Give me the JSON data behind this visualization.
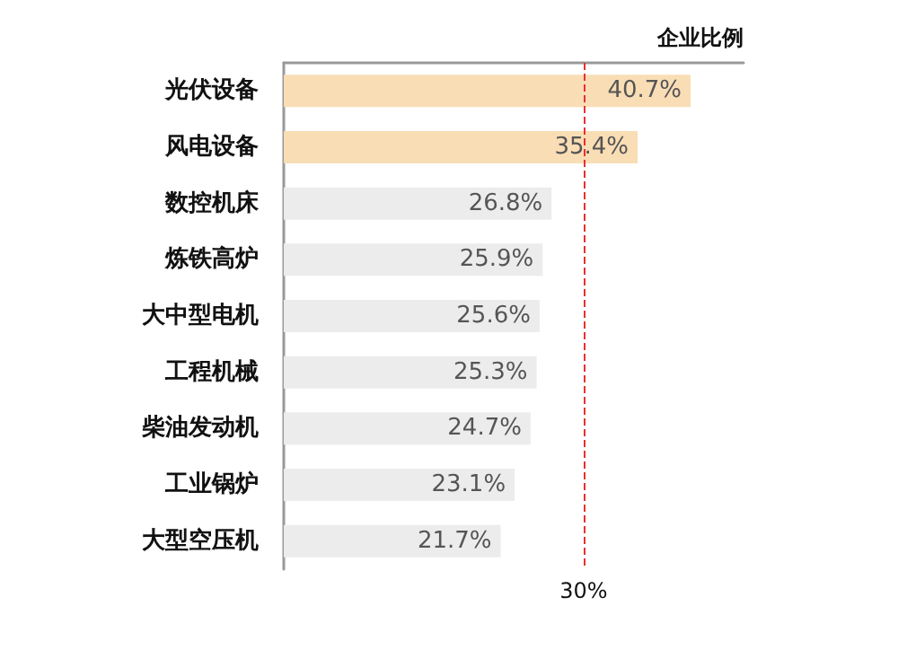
{
  "chart_data": {
    "type": "bar",
    "orientation": "horizontal",
    "xlabel": "企业比例",
    "categories": [
      "光伏设备",
      "风电设备",
      "数控机床",
      "炼铁高炉",
      "大中型电机",
      "工程机械",
      "柴油发动机",
      "工业锅炉",
      "大型空压机"
    ],
    "values": [
      40.7,
      35.4,
      26.8,
      25.9,
      25.6,
      25.3,
      24.7,
      23.1,
      21.7
    ],
    "value_labels": [
      "40.7%",
      "35.4%",
      "26.8%",
      "25.9%",
      "25.6%",
      "25.3%",
      "24.7%",
      "23.1%",
      "21.7%"
    ],
    "colors": [
      "#f9ddb5",
      "#f9ddb5",
      "#ececec",
      "#ececec",
      "#ececec",
      "#ececec",
      "#ececec",
      "#ececec",
      "#ececec"
    ],
    "xlim": [
      0,
      46
    ],
    "tick_labels": "y",
    "grid": false,
    "ref_lines": [
      {
        "axis": "x",
        "value": 30,
        "label": "30%",
        "color": "#e83030",
        "line_style": "dashed"
      }
    ]
  }
}
